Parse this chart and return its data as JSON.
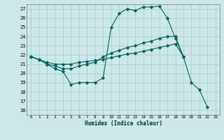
{
  "xlabel": "Humidex (Indice chaleur)",
  "bg_color": "#cce8e8",
  "grid_color": "#aacfcf",
  "line_color": "#006060",
  "xlim": [
    -0.5,
    23.5
  ],
  "ylim": [
    15.5,
    27.5
  ],
  "xticks": [
    0,
    1,
    2,
    3,
    4,
    5,
    6,
    7,
    8,
    9,
    10,
    11,
    12,
    13,
    14,
    15,
    16,
    17,
    18,
    19,
    20,
    21,
    22,
    23
  ],
  "yticks": [
    16,
    17,
    18,
    19,
    20,
    21,
    22,
    23,
    24,
    25,
    26,
    27
  ],
  "line1_x": [
    0,
    1,
    2,
    3,
    4,
    5,
    6,
    7,
    8,
    9,
    10,
    11,
    12,
    13,
    14,
    15,
    16,
    17,
    18,
    19,
    20,
    21,
    22
  ],
  "line1_y": [
    21.8,
    21.5,
    21.0,
    20.5,
    20.2,
    18.8,
    19.0,
    19.0,
    19.0,
    19.5,
    25.0,
    26.5,
    27.0,
    26.8,
    27.2,
    27.2,
    27.3,
    26.0,
    23.8,
    21.8,
    19.0,
    18.2,
    16.3
  ],
  "line2_x": [
    0,
    1,
    2,
    3,
    4,
    5,
    6,
    7,
    8,
    9,
    10,
    11,
    12,
    13,
    14,
    15,
    16,
    17,
    18,
    19
  ],
  "line2_y": [
    21.8,
    21.5,
    21.0,
    20.8,
    20.5,
    20.5,
    20.8,
    21.0,
    21.2,
    21.8,
    22.2,
    22.5,
    22.8,
    23.0,
    23.3,
    23.5,
    23.8,
    24.0,
    24.0,
    21.8
  ],
  "line3_x": [
    0,
    1,
    2,
    3,
    4,
    5,
    6,
    7,
    8,
    9,
    10,
    11,
    12,
    13,
    14,
    15,
    16,
    17,
    18,
    19
  ],
  "line3_y": [
    21.8,
    21.5,
    21.2,
    21.0,
    21.0,
    21.0,
    21.2,
    21.3,
    21.4,
    21.5,
    21.7,
    21.9,
    22.1,
    22.2,
    22.4,
    22.6,
    22.8,
    23.0,
    23.2,
    21.8
  ]
}
